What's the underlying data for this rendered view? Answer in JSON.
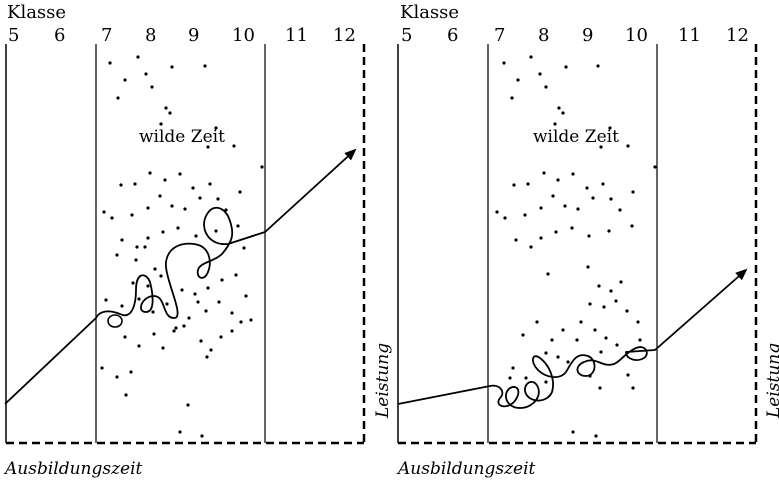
{
  "panels": [
    {
      "id": "left",
      "klasse_label": "Klasse",
      "grades": [
        "5",
        "6",
        "7",
        "8",
        "9",
        "10",
        "11",
        "12"
      ],
      "annotation": "wilde Zeit",
      "x_axis_label": "Ausbildungszeit",
      "y_axis_label": ""
    },
    {
      "id": "right",
      "klasse_label": "Klasse",
      "grades": [
        "5",
        "6",
        "7",
        "8",
        "9",
        "10",
        "11",
        "12"
      ],
      "annotation": "wilde Zeit",
      "x_axis_label": "Ausbildungszeit",
      "y_axis_label": "Leistung",
      "right_edge_label": "Leistung"
    }
  ],
  "colors": {
    "ink": "#000000",
    "background": "#ffffff"
  }
}
